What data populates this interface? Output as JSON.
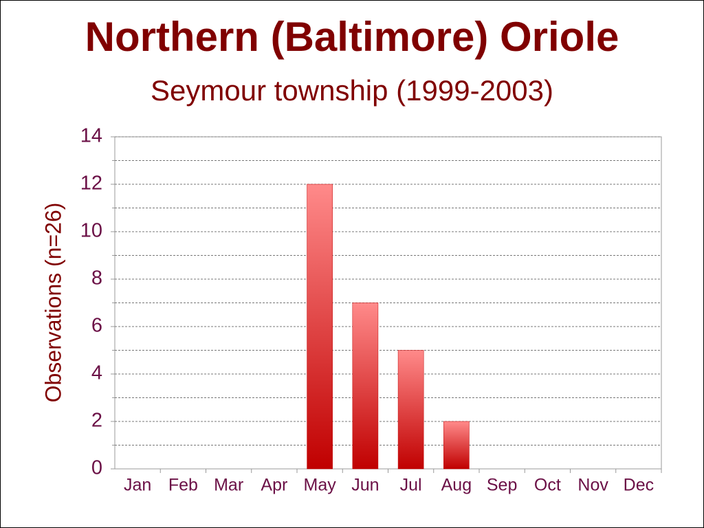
{
  "chart_data": {
    "type": "bar",
    "title": "Northern (Baltimore) Oriole",
    "subtitle": "Seymour township (1999-2003)",
    "y_label": "Observations (n=26)",
    "categories": [
      "Jan",
      "Feb",
      "Mar",
      "Apr",
      "May",
      "Jun",
      "Jul",
      "Aug",
      "Sep",
      "Oct",
      "Nov",
      "Dec"
    ],
    "values": [
      0,
      0,
      0,
      0,
      12,
      7,
      5,
      2,
      0,
      0,
      0,
      0
    ],
    "color": "#c00000",
    "ylim": [
      0,
      14
    ],
    "yticks": [
      0,
      2,
      4,
      6,
      8,
      10,
      12,
      14
    ],
    "grid": true
  }
}
